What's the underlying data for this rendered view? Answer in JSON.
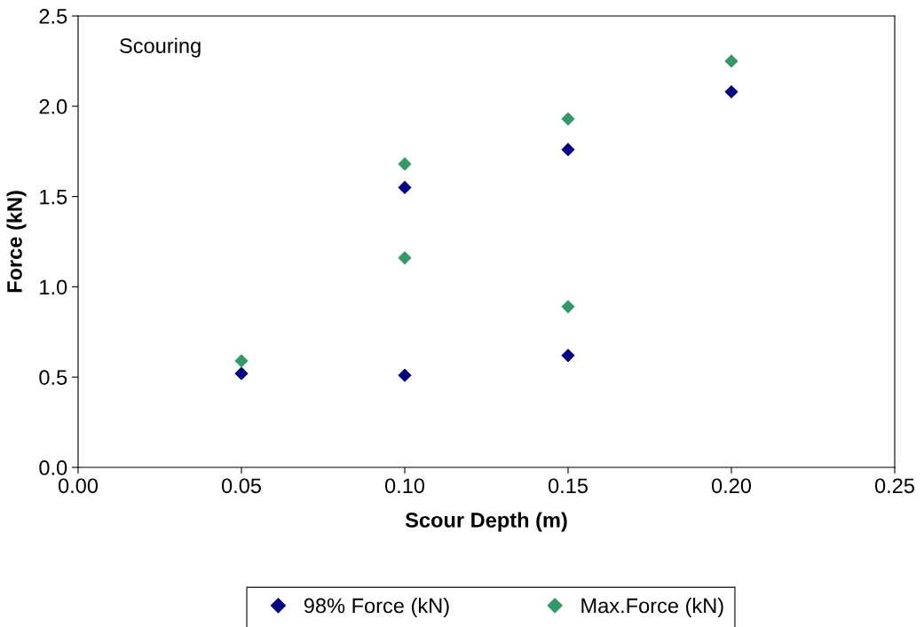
{
  "chart_data": {
    "type": "scatter",
    "xlabel": "Scour Depth (m)",
    "ylabel": "Force (kN)",
    "annotations": [
      "Scouring"
    ],
    "series": [
      {
        "name": "98% Force (kN)",
        "color": "#000080",
        "x": [
          0.05,
          0.1,
          0.1,
          0.15,
          0.15,
          0.2
        ],
        "values": [
          0.52,
          0.51,
          1.55,
          0.62,
          1.76,
          2.08
        ]
      },
      {
        "name": "Max.Force (kN)",
        "color": "#339966",
        "x": [
          0.05,
          0.1,
          0.1,
          0.15,
          0.15,
          0.2
        ],
        "values": [
          0.59,
          1.16,
          1.68,
          0.89,
          1.93,
          2.25
        ]
      }
    ],
    "xlim": [
      0,
      0.25
    ],
    "xticks": [
      {
        "value": 0,
        "label": "0.00"
      },
      {
        "value": 0.05,
        "label": "0.05"
      },
      {
        "value": 0.1,
        "label": "0.10"
      },
      {
        "value": 0.15,
        "label": "0.15"
      },
      {
        "value": 0.2,
        "label": "0.20"
      },
      {
        "value": 0.25,
        "label": "0.25"
      }
    ],
    "ylim": [
      0,
      2.5
    ],
    "yticks": [
      {
        "value": 0,
        "label": "0.0"
      },
      {
        "value": 0.5,
        "label": "0.5"
      },
      {
        "value": 1,
        "label": "1.0"
      },
      {
        "value": 1.5,
        "label": "1.5"
      },
      {
        "value": 2,
        "label": "2.0"
      },
      {
        "value": 2.5,
        "label": "2.5"
      }
    ],
    "grid": false,
    "legend": "bottom",
    "marker": "diamond"
  }
}
